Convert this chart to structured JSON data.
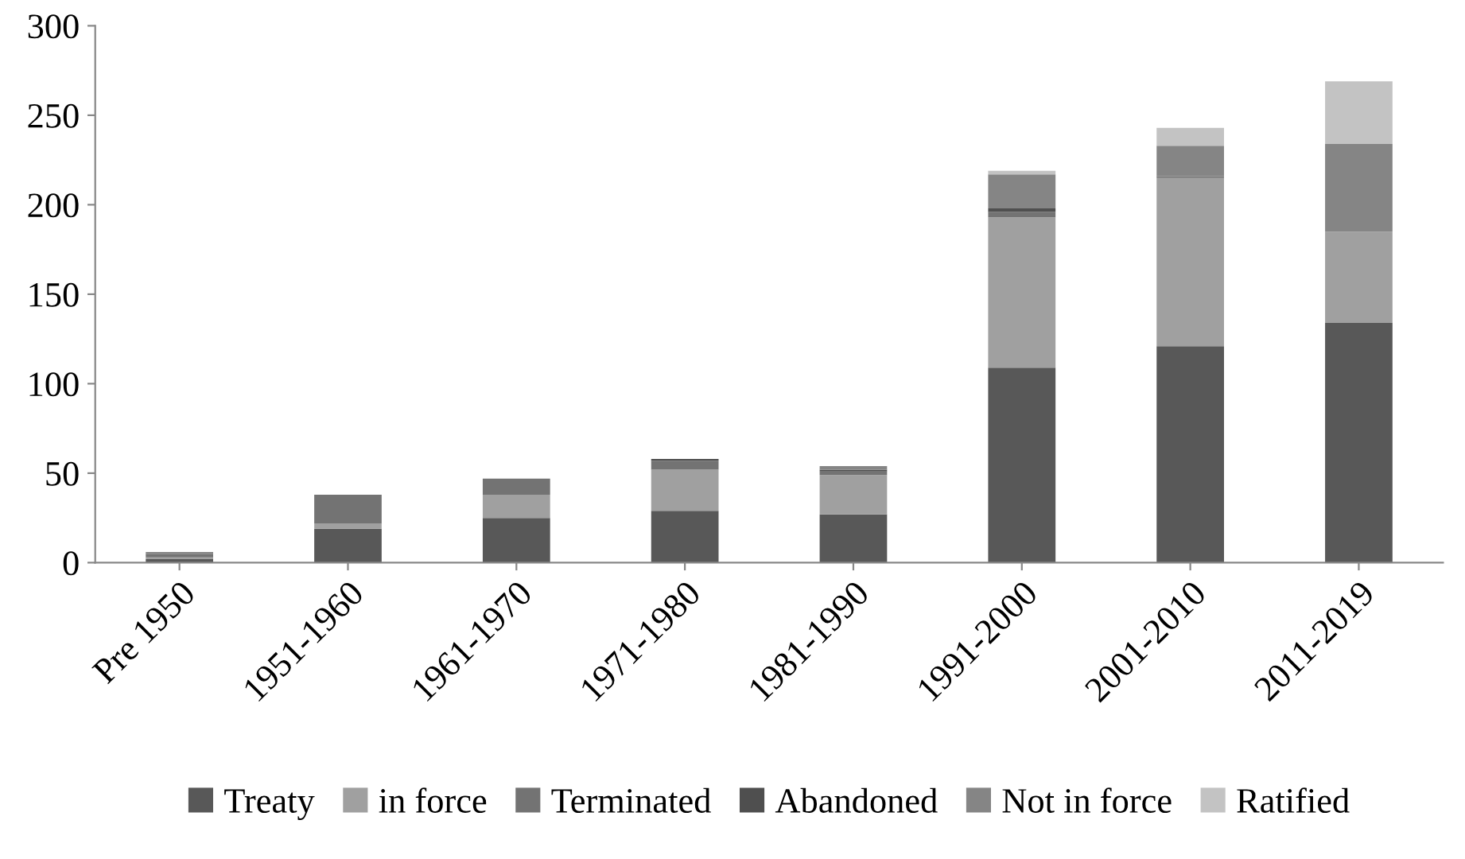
{
  "chart_data": {
    "type": "bar",
    "stacked": true,
    "categories": [
      "Pre 1950",
      "1951-1960",
      "1961-1970",
      "1971-1980",
      "1981-1990",
      "1991-2000",
      "2001-2010",
      "2011-2019"
    ],
    "series": [
      {
        "name": "Treaty",
        "color": "#585858",
        "values": [
          2,
          19,
          25,
          29,
          27,
          109,
          121,
          134
        ]
      },
      {
        "name": "in force",
        "color": "#a0a0a0",
        "values": [
          1,
          3,
          13,
          23,
          22,
          84,
          94,
          51
        ]
      },
      {
        "name": "Terminated",
        "color": "#737373",
        "values": [
          2,
          16,
          9,
          5,
          2,
          3,
          1,
          0
        ]
      },
      {
        "name": "Abandoned",
        "color": "#4f4f4f",
        "values": [
          0,
          0,
          0,
          1,
          1,
          2,
          0,
          0
        ]
      },
      {
        "name": "Not in force",
        "color": "#858585",
        "values": [
          1,
          0,
          0,
          0,
          2,
          19,
          17,
          49
        ]
      },
      {
        "name": "Ratified",
        "color": "#c3c3c3",
        "values": [
          0,
          0,
          0,
          0,
          0,
          2,
          10,
          35
        ]
      }
    ],
    "ylim": [
      0,
      300
    ],
    "yticks": [
      0,
      50,
      100,
      150,
      200,
      250,
      300
    ],
    "grid": false,
    "legend": "bottom"
  }
}
